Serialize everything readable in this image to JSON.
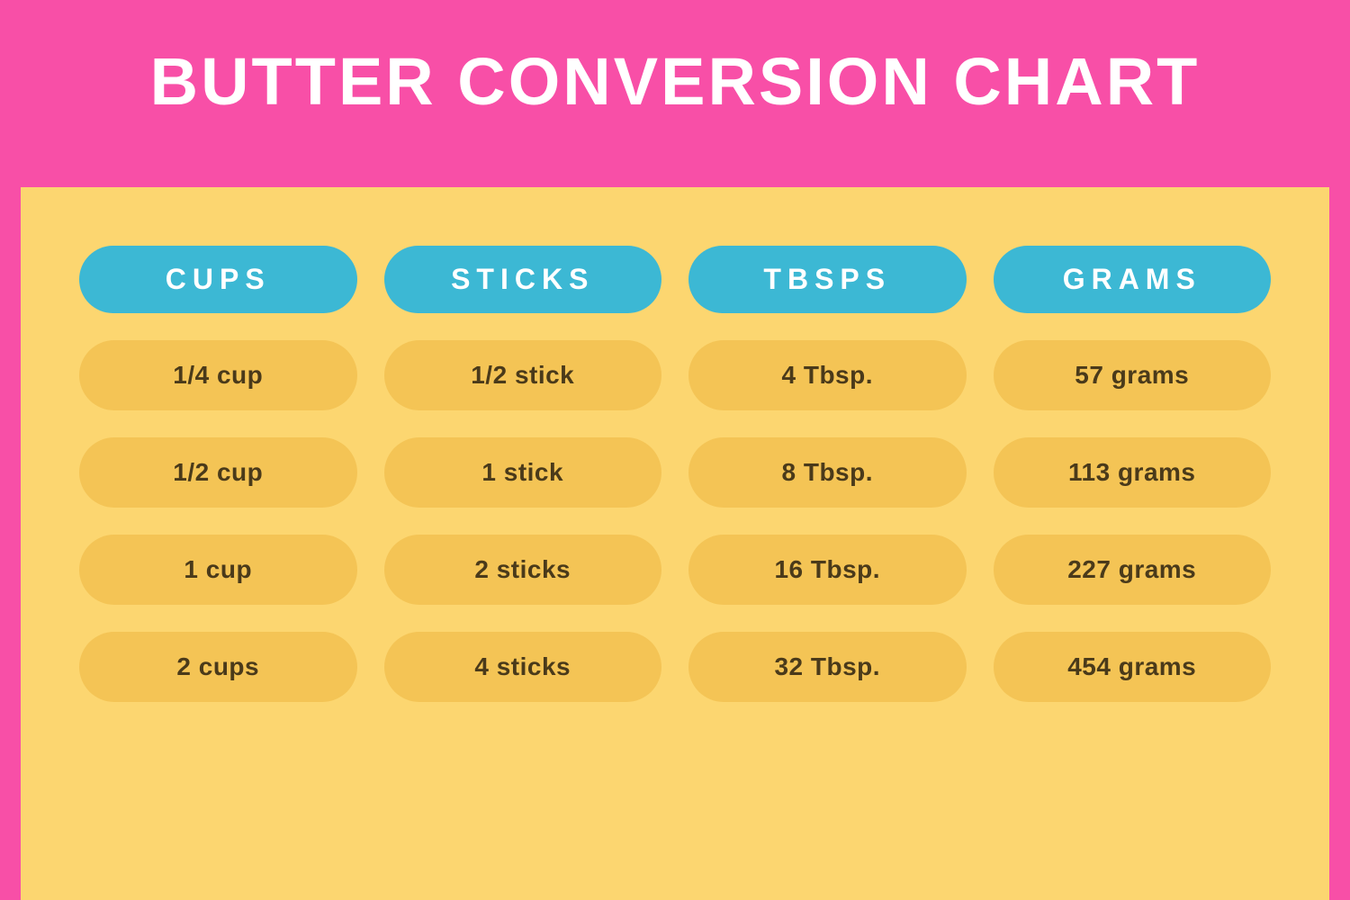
{
  "title": "BUTTER CONVERSION CHART",
  "colors": {
    "background_pink": "#f84fa7",
    "content_yellow": "#fcd670",
    "header_pill_blue": "#3cb8d4",
    "data_pill_yellow": "#f4c455",
    "title_text": "#ffffff",
    "header_pill_text": "#ffffff",
    "data_text": "#4a3a1a"
  },
  "typography": {
    "title_fontsize": 74,
    "title_weight": 900,
    "title_letter_spacing": 3,
    "header_pill_fontsize": 32,
    "header_pill_letter_spacing": 7,
    "data_pill_fontsize": 28
  },
  "layout": {
    "pill_border_radius": 40,
    "column_gap": 30,
    "row_gap": 30
  },
  "table": {
    "type": "table",
    "columns": [
      "CUPS",
      "STICKS",
      "TBSPS",
      "GRAMS"
    ],
    "rows": [
      [
        "1/4 cup",
        "1/2 stick",
        "4 Tbsp.",
        "57 grams"
      ],
      [
        "1/2 cup",
        "1 stick",
        "8 Tbsp.",
        "113 grams"
      ],
      [
        "1 cup",
        "2 sticks",
        "16 Tbsp.",
        "227 grams"
      ],
      [
        "2 cups",
        "4 sticks",
        "32 Tbsp.",
        "454 grams"
      ]
    ]
  }
}
